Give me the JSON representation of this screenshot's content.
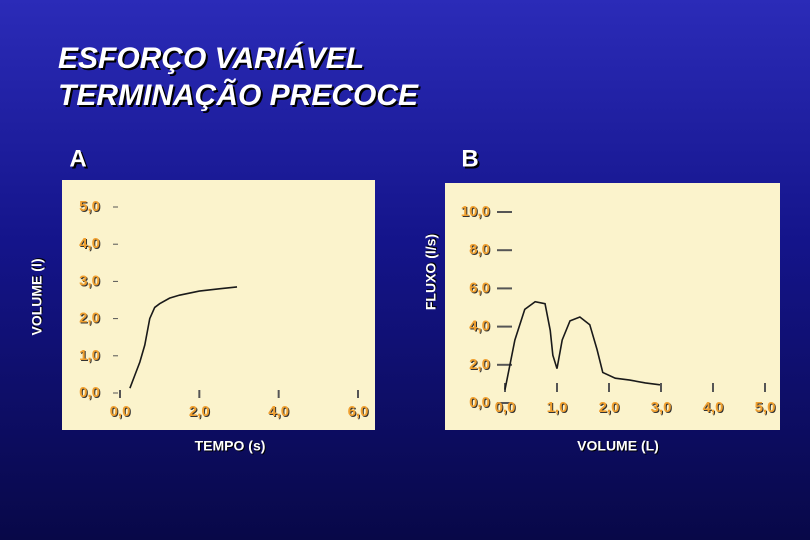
{
  "title_lines": [
    "ESFORÇO VARIÁVEL",
    "TERMINAÇÃO PRECOCE"
  ],
  "chart_data": [
    {
      "type": "line",
      "title": "A",
      "x_label": "TEMPO (s)",
      "y_label": "VOLUME (l)",
      "xlim": [
        0,
        6
      ],
      "ylim": [
        0,
        5
      ],
      "xticks": [
        {
          "value": 0,
          "label": "0,0"
        },
        {
          "value": 2,
          "label": "2,0"
        },
        {
          "value": 4,
          "label": "4,0"
        },
        {
          "value": 6,
          "label": "6,0"
        }
      ],
      "yticks": [
        {
          "value": 0,
          "label": "0,0"
        },
        {
          "value": 1,
          "label": "1,0"
        },
        {
          "value": 2,
          "label": "2,0"
        },
        {
          "value": 3,
          "label": "3,0"
        },
        {
          "value": 4,
          "label": "4,0"
        },
        {
          "value": 5,
          "label": "5,0"
        }
      ],
      "series": [
        {
          "color": "#1a1a1a",
          "x": [
            0.25,
            0.375,
            0.5,
            0.625,
            0.75,
            0.875,
            1.0,
            1.25,
            1.5,
            2.0,
            2.5,
            2.95
          ],
          "values": [
            0.13,
            0.48,
            0.83,
            1.29,
            2.0,
            2.3,
            2.4,
            2.55,
            2.63,
            2.74,
            2.8,
            2.85
          ]
        }
      ]
    },
    {
      "type": "line",
      "title": "B",
      "x_label": "VOLUME (L)",
      "y_label": "FLUXO (l/s)",
      "xlim": [
        0,
        5
      ],
      "ylim": [
        0,
        10
      ],
      "xticks": [
        {
          "value": 0,
          "label": "0,0"
        },
        {
          "value": 1,
          "label": "1,0"
        },
        {
          "value": 2,
          "label": "2,0"
        },
        {
          "value": 3,
          "label": "3,0"
        },
        {
          "value": 4,
          "label": "4,0"
        },
        {
          "value": 5,
          "label": "5,0"
        }
      ],
      "yticks": [
        {
          "value": 0,
          "label": "0,0"
        },
        {
          "value": 2,
          "label": "2,0"
        },
        {
          "value": 4,
          "label": "4,0"
        },
        {
          "value": 6,
          "label": "6,0"
        },
        {
          "value": 8,
          "label": "8,0"
        },
        {
          "value": 10,
          "label": "10,0"
        }
      ],
      "series": [
        {
          "color": "#1a1a1a",
          "x": [
            0.0,
            0.19,
            0.38,
            0.58,
            0.77,
            0.87,
            0.92,
            1.0,
            1.1,
            1.25,
            1.44,
            1.63,
            1.77,
            1.88,
            2.12,
            2.4,
            2.7,
            2.98
          ],
          "values": [
            0.7,
            3.3,
            4.9,
            5.3,
            5.2,
            3.8,
            2.5,
            1.8,
            3.3,
            4.3,
            4.5,
            4.1,
            2.8,
            1.6,
            1.3,
            1.2,
            1.05,
            0.95
          ]
        }
      ]
    }
  ]
}
